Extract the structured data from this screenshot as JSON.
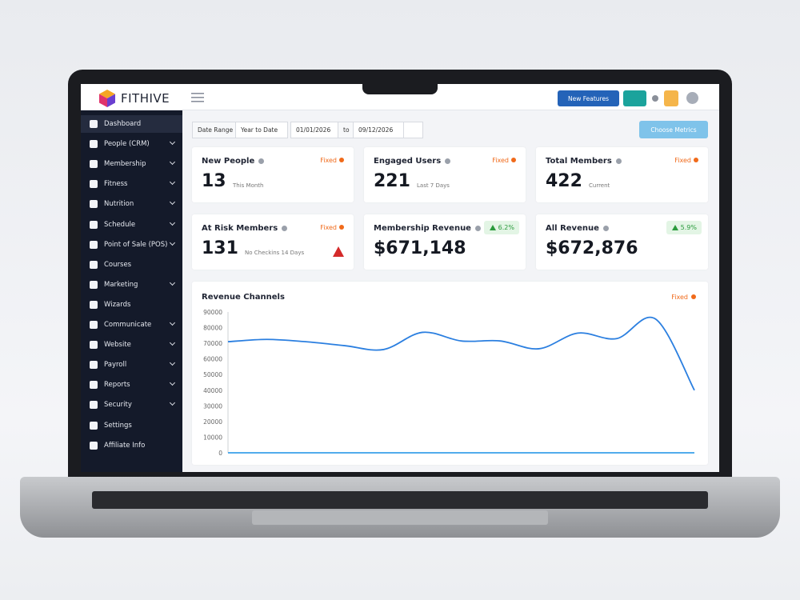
{
  "brand": "FITHIVE",
  "header": {
    "new_features": "New Features"
  },
  "sidebar": [
    {
      "label": "Dashboard",
      "expandable": false,
      "active": true
    },
    {
      "label": "People (CRM)",
      "expandable": true
    },
    {
      "label": "Membership",
      "expandable": true
    },
    {
      "label": "Fitness",
      "expandable": true
    },
    {
      "label": "Nutrition",
      "expandable": true
    },
    {
      "label": "Schedule",
      "expandable": true
    },
    {
      "label": "Point of Sale (POS)",
      "expandable": true
    },
    {
      "label": "Courses",
      "expandable": false
    },
    {
      "label": "Marketing",
      "expandable": true
    },
    {
      "label": "Wizards",
      "expandable": false
    },
    {
      "label": "Communicate",
      "expandable": true
    },
    {
      "label": "Website",
      "expandable": true
    },
    {
      "label": "Payroll",
      "expandable": true
    },
    {
      "label": "Reports",
      "expandable": true
    },
    {
      "label": "Security",
      "expandable": true
    },
    {
      "label": "Settings",
      "expandable": false
    },
    {
      "label": "Affiliate Info",
      "expandable": false
    }
  ],
  "filters": {
    "date_range_label": "Date Range",
    "range": "Year to Date",
    "from": "01/01/2026",
    "to_label": "to",
    "to": "09/12/2026",
    "choose_metrics": "Choose Metrics"
  },
  "cards": [
    {
      "title": "New People",
      "value": 13,
      "note": "This Month",
      "badge": "Fixed",
      "badge_kind": "fixed"
    },
    {
      "title": "Engaged Users",
      "value": 221,
      "note": "Last 7 Days",
      "badge": "Fixed",
      "badge_kind": "fixed"
    },
    {
      "title": "Total Members",
      "value": 422,
      "note": "Current",
      "badge": "Fixed",
      "badge_kind": "fixed"
    },
    {
      "title": "At Risk Members",
      "value": 131,
      "note": "No Checkins 14 Days",
      "badge": "Fixed",
      "badge_kind": "fixed",
      "alert": true
    },
    {
      "title": "Membership Revenue",
      "value": "$671,148",
      "badge": "6.2%",
      "badge_kind": "up"
    },
    {
      "title": "All Revenue",
      "value": "$672,876",
      "badge": "5.9%",
      "badge_kind": "up"
    }
  ],
  "chart_data": {
    "type": "line",
    "title": "Revenue Channels",
    "badge": "Fixed",
    "categories": [
      null,
      null,
      null,
      null,
      null,
      null,
      null,
      null,
      null,
      null,
      null,
      null,
      null
    ],
    "series": [
      {
        "color": "#2b7fe0",
        "values": [
          71000,
          72500,
          71000,
          68500,
          66000,
          77000,
          71500,
          71500,
          66500,
          76500,
          73000,
          85500,
          40000
        ]
      },
      {
        "color": "#3aa0ea",
        "values": [
          0,
          0,
          0,
          0,
          0,
          0,
          0,
          0,
          0,
          0,
          0,
          0,
          0
        ]
      }
    ],
    "ylim": [
      0,
      90000
    ],
    "yticks": [
      0,
      10000,
      20000,
      30000,
      40000,
      50000,
      60000,
      70000,
      80000,
      90000
    ],
    "grid": false
  }
}
